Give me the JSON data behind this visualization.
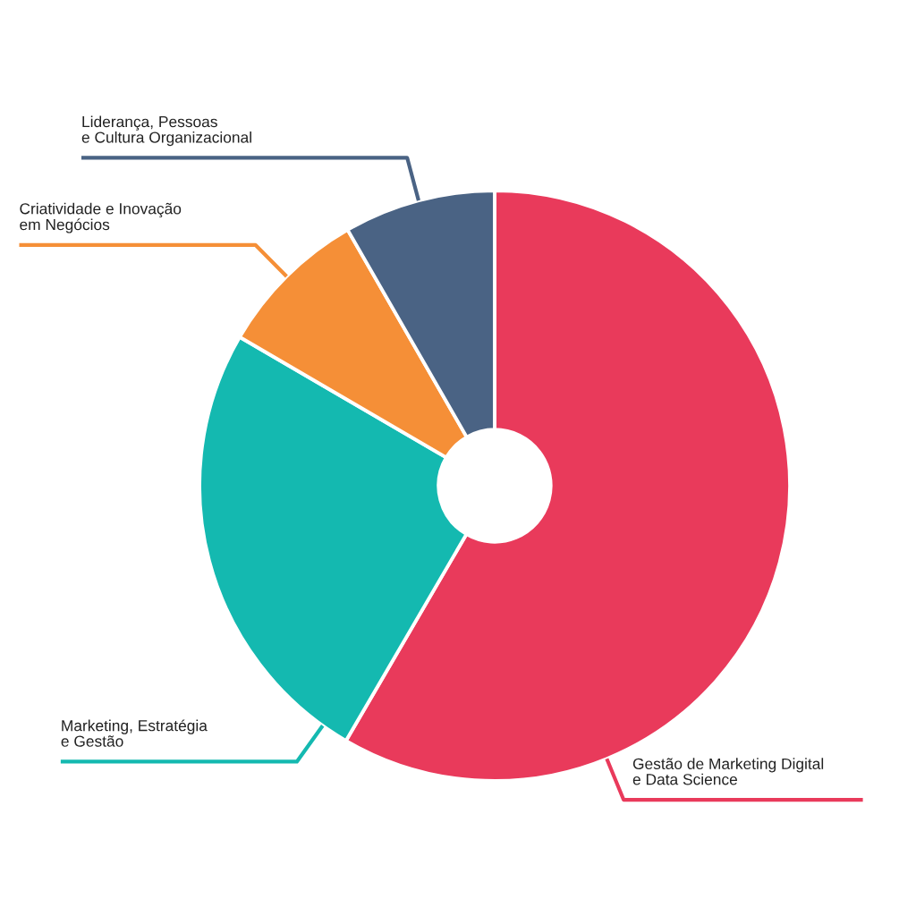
{
  "chart_data": {
    "type": "donut",
    "categories": [
      "Gestão de Marketing Digital\ne Data Science",
      "Marketing, Estratégia\ne Gestão",
      "Criatividade e Inovação\nem Negócios",
      "Liderança, Pessoas\ne Cultura Organizacional"
    ],
    "values": [
      58.4,
      25,
      8.3,
      8.3
    ],
    "colors": [
      "#e93a5b",
      "#14b9b0",
      "#f58f37",
      "#4a6384"
    ]
  }
}
